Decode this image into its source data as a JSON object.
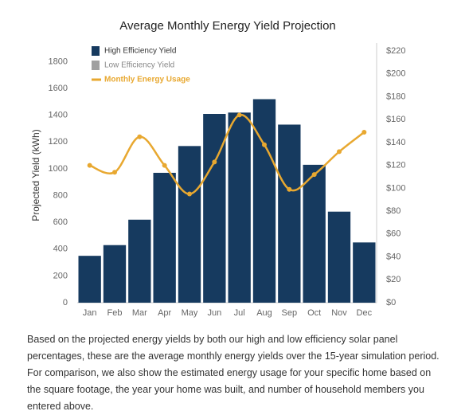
{
  "chart_data": {
    "type": "bar",
    "title": "Average Monthly Energy Yield Projection",
    "y_label": "Projected Yield (kWh)",
    "categories": [
      "Jan",
      "Feb",
      "Mar",
      "Apr",
      "May",
      "Jun",
      "Jul",
      "Aug",
      "Sep",
      "Oct",
      "Nov",
      "Dec"
    ],
    "series": [
      {
        "name": "High Efficiency Yield",
        "color": "#163a5f",
        "values": [
          350,
          430,
          620,
          970,
          1170,
          1410,
          1420,
          1520,
          1330,
          1030,
          680,
          450
        ]
      },
      {
        "name": "Low Efficiency Yield",
        "color": "#a0a0a0",
        "values": [
          null,
          null,
          null,
          null,
          null,
          null,
          null,
          null,
          null,
          null,
          null,
          null
        ]
      },
      {
        "name": "Monthly Energy Usage",
        "color": "#e8a830",
        "type": "line",
        "axis": "y2",
        "values": [
          120,
          114,
          145,
          120,
          95,
          123,
          164,
          138,
          99,
          112,
          132,
          149
        ]
      }
    ],
    "ylim": [
      0,
      1880
    ],
    "yticks": [
      0,
      200,
      400,
      600,
      800,
      1000,
      1200,
      1400,
      1600,
      1800
    ],
    "y2lim": [
      0,
      220
    ],
    "y2ticks": [
      {
        "value": 0,
        "label": "$0"
      },
      {
        "value": 20,
        "label": "$20"
      },
      {
        "value": 40,
        "label": "$40"
      },
      {
        "value": 60,
        "label": "$60"
      },
      {
        "value": 80,
        "label": "$80"
      },
      {
        "value": 100,
        "label": "$100"
      },
      {
        "value": 120,
        "label": "$120"
      },
      {
        "value": 140,
        "label": "$140"
      },
      {
        "value": 160,
        "label": "$160"
      },
      {
        "value": 180,
        "label": "$180"
      },
      {
        "value": 200,
        "label": "$200"
      },
      {
        "value": 220,
        "label": "$220"
      }
    ],
    "legend": "top-left",
    "grid": false
  },
  "description": {
    "lines": [
      "Based on the projected energy yields by both our high and low efficiency solar panel",
      "percentages, these are the average monthly energy yields over the 15-year simulation period.",
      "For comparison, we also show the estimated energy usage for your specific home based on",
      "the square footage, the year your home was built, and number of household members you",
      "entered above."
    ]
  }
}
